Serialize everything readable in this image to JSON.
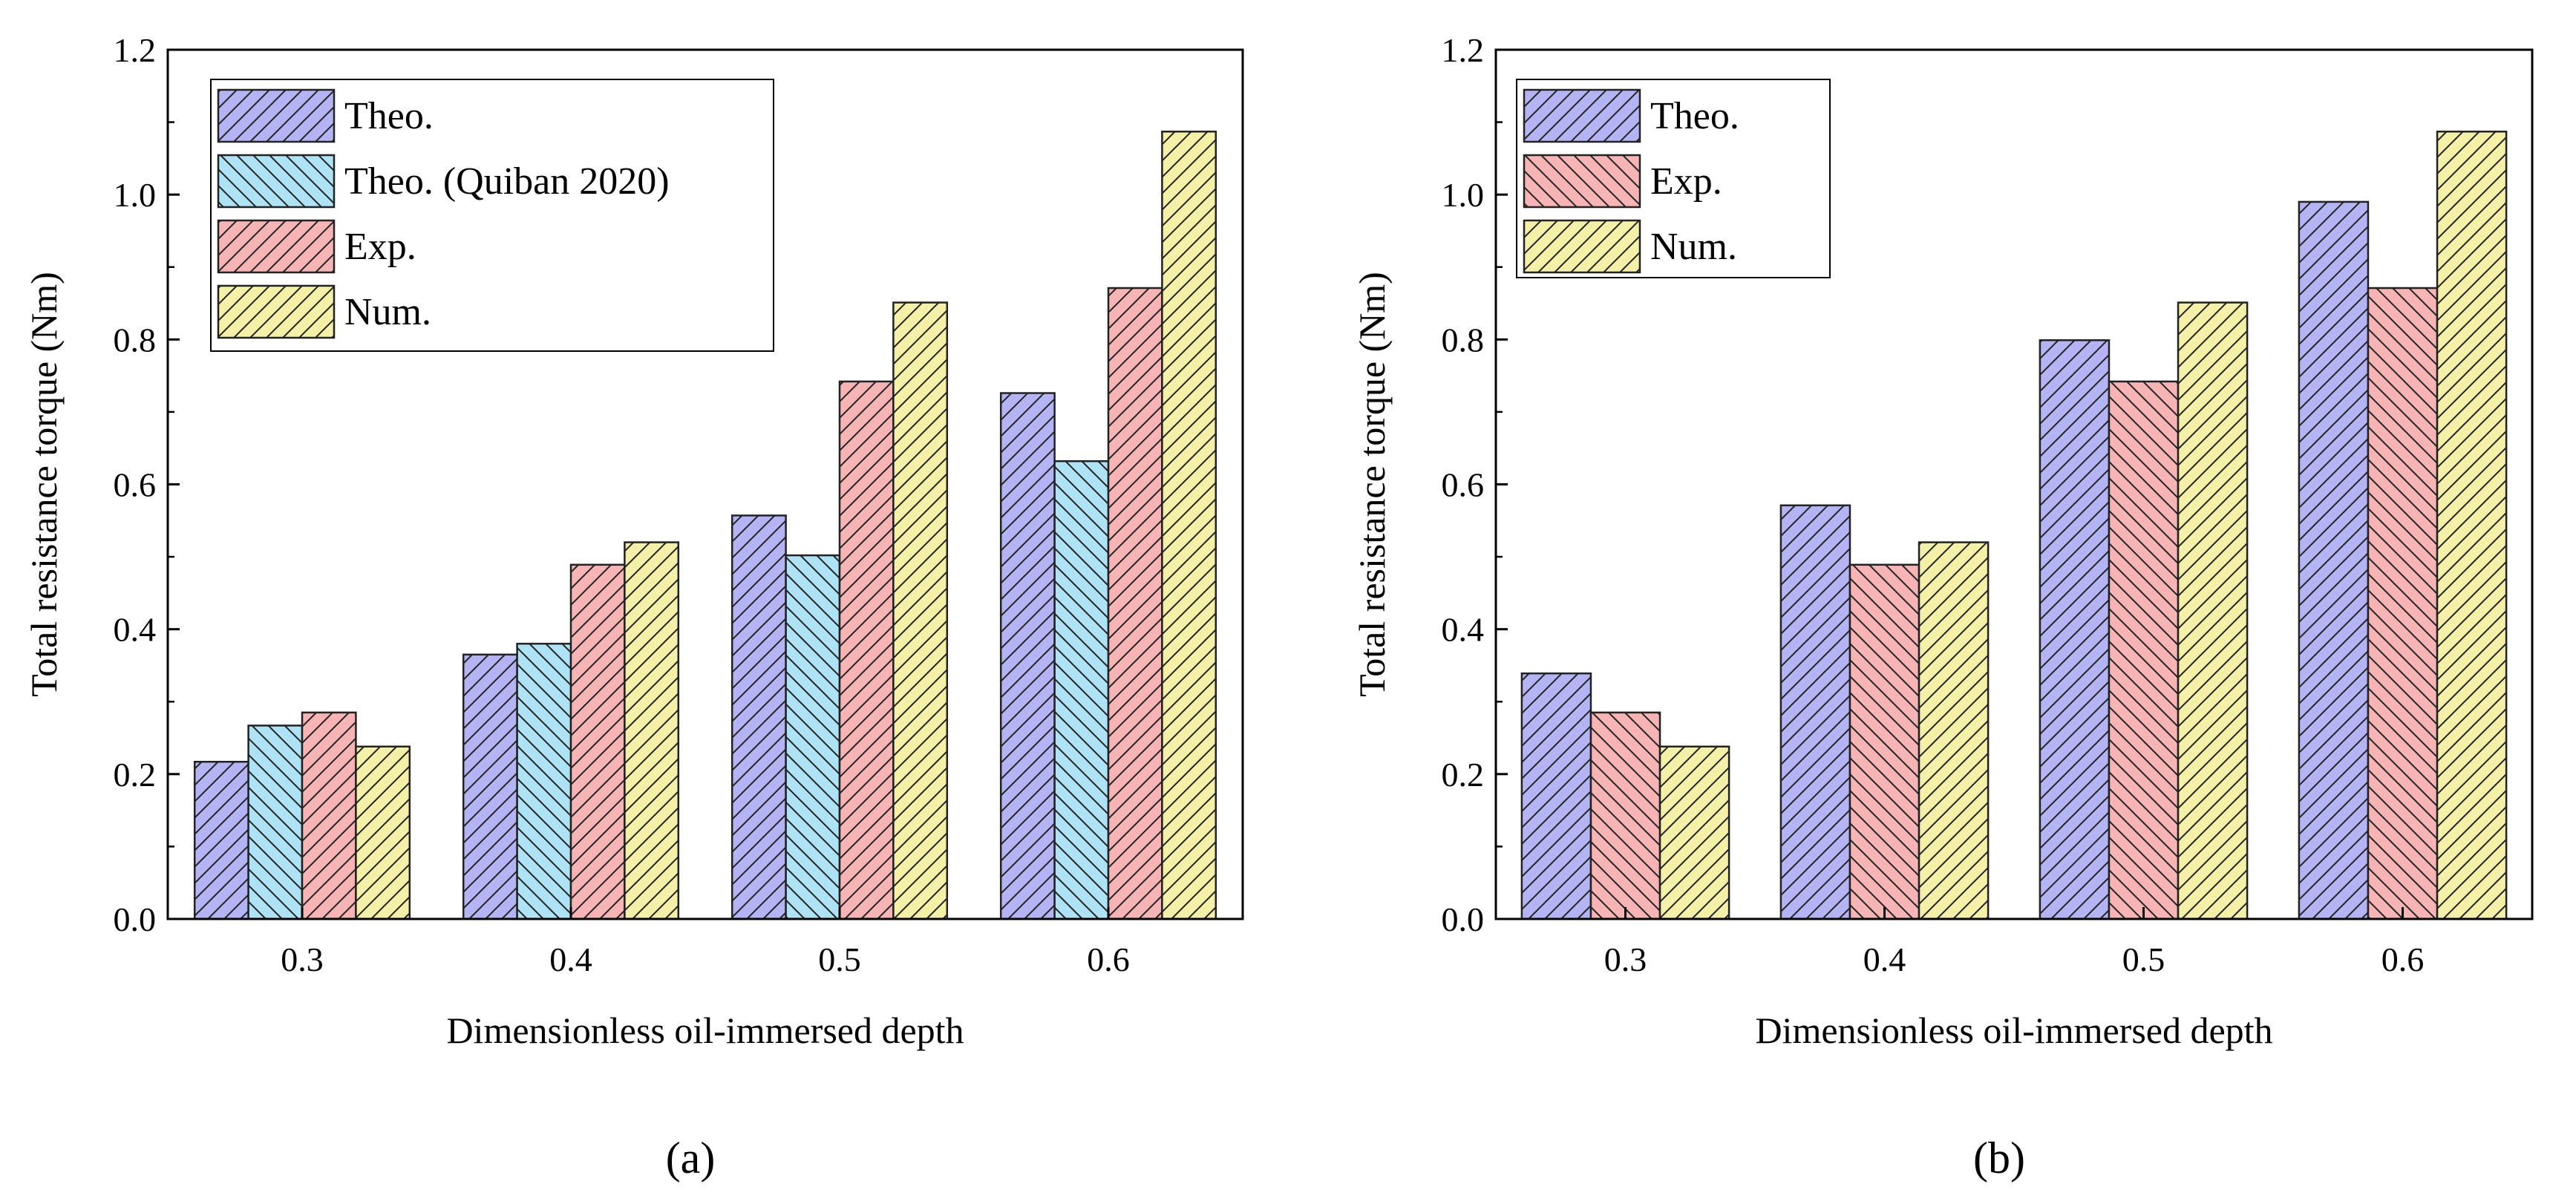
{
  "chart_data": [
    {
      "type": "bar",
      "panel_label": "(a)",
      "categories": [
        "0.3",
        "0.4",
        "0.5",
        "0.6"
      ],
      "series": [
        {
          "name": "Theo.",
          "values": [
            0.217,
            0.365,
            0.557,
            0.726
          ],
          "color": "#b4b4f5",
          "hatch": "forward"
        },
        {
          "name": "Theo. (Quiban 2020)",
          "values": [
            0.267,
            0.38,
            0.502,
            0.632
          ],
          "color": "#aee3f5",
          "hatch": "back"
        },
        {
          "name": "Exp.",
          "values": [
            0.285,
            0.489,
            0.742,
            0.871
          ],
          "color": "#f7b4b4",
          "hatch": "forward"
        },
        {
          "name": "Num.",
          "values": [
            0.238,
            0.52,
            0.851,
            1.087
          ],
          "color": "#f5f0a8",
          "hatch": "forward"
        }
      ],
      "xlabel": "Dimensionless oil-immersed depth",
      "ylabel": "Total resistance torque (Nm)",
      "ylim": [
        0,
        1.2
      ],
      "yticks": [
        "0.0",
        "0.2",
        "0.4",
        "0.6",
        "0.8",
        "1.0",
        "1.2"
      ],
      "legend_position": "top-left",
      "grid": false
    },
    {
      "type": "bar",
      "panel_label": "(b)",
      "categories": [
        "0.3",
        "0.4",
        "0.5",
        "0.6"
      ],
      "series": [
        {
          "name": "Theo.",
          "values": [
            0.339,
            0.571,
            0.799,
            0.99
          ],
          "color": "#b4b4f5",
          "hatch": "forward"
        },
        {
          "name": "Exp.",
          "values": [
            0.285,
            0.489,
            0.742,
            0.871
          ],
          "color": "#f7b4b4",
          "hatch": "back"
        },
        {
          "name": "Num.",
          "values": [
            0.238,
            0.52,
            0.851,
            1.087
          ],
          "color": "#f5f0a8",
          "hatch": "forward"
        }
      ],
      "xlabel": "Dimensionless oil-immersed depth",
      "ylabel": "Total resistance torque (Nm)",
      "ylim": [
        0,
        1.2
      ],
      "yticks": [
        "0.0",
        "0.2",
        "0.4",
        "0.6",
        "0.8",
        "1.0",
        "1.2"
      ],
      "legend_position": "top-left",
      "grid": false
    }
  ]
}
